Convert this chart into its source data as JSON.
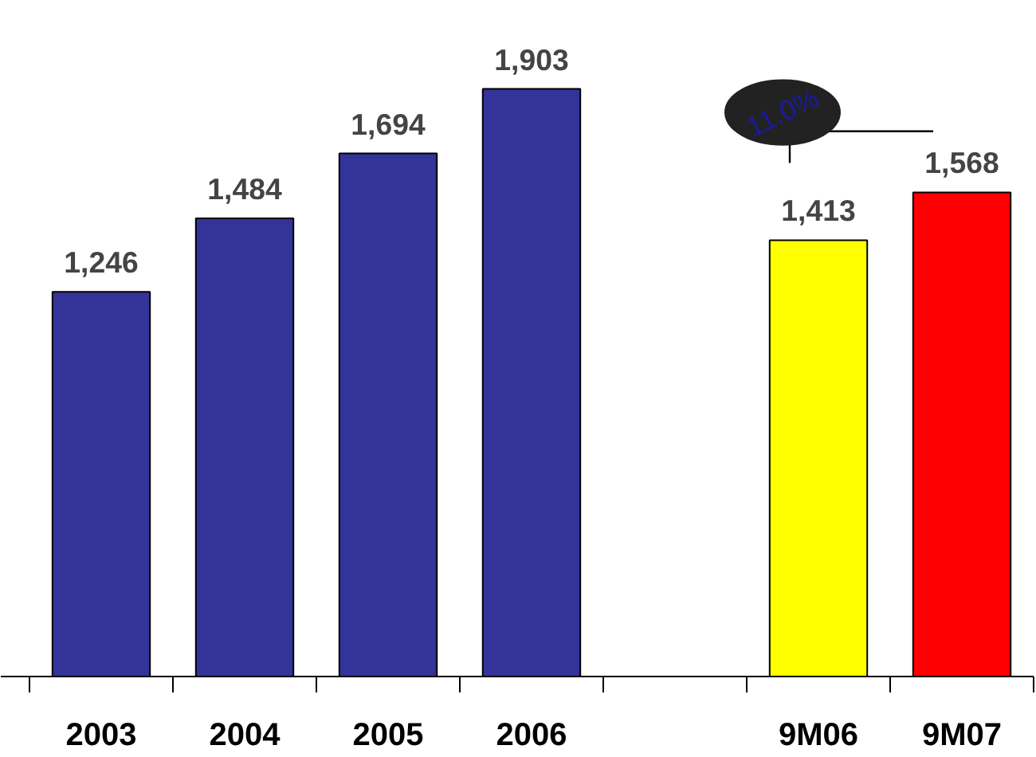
{
  "chart_data": {
    "type": "bar",
    "categories": [
      "2003",
      "2004",
      "2005",
      "2006",
      null,
      "9M06",
      "9M07"
    ],
    "values": [
      1246,
      1484,
      1694,
      1903,
      null,
      1413,
      1568
    ],
    "colors": [
      "#333399",
      "#333399",
      "#333399",
      "#333399",
      "#333399",
      "#ffff00",
      "#ff0000"
    ],
    "value_labels": [
      "1,246",
      "1,484",
      "1,694",
      "1,903",
      null,
      "1,413",
      "1,568"
    ],
    "annotations": [
      "11.0%"
    ],
    "grid": false,
    "tick_labels": "x"
  }
}
